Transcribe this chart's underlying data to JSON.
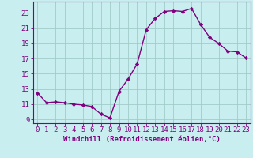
{
  "x": [
    0,
    1,
    2,
    3,
    4,
    5,
    6,
    7,
    8,
    9,
    10,
    11,
    12,
    13,
    14,
    15,
    16,
    17,
    18,
    19,
    20,
    21,
    22,
    23
  ],
  "y": [
    12.5,
    11.2,
    11.3,
    11.2,
    11.0,
    10.9,
    10.7,
    9.7,
    9.2,
    12.7,
    14.3,
    16.3,
    20.8,
    22.3,
    23.2,
    23.3,
    23.2,
    23.6,
    21.5,
    19.8,
    19.0,
    18.0,
    17.9,
    17.1
  ],
  "line_color": "#800080",
  "marker": "D",
  "marker_size": 2.2,
  "linewidth": 1.0,
  "bg_color": "#c8eef0",
  "grid_color": "#a0ccc8",
  "xlabel": "Windchill (Refroidissement éolien,°C)",
  "xlabel_fontsize": 6.5,
  "xtick_labels": [
    "0",
    "1",
    "2",
    "3",
    "4",
    "5",
    "6",
    "7",
    "8",
    "9",
    "10",
    "11",
    "12",
    "13",
    "14",
    "15",
    "16",
    "17",
    "18",
    "19",
    "20",
    "21",
    "22",
    "23"
  ],
  "ytick_values": [
    9,
    11,
    13,
    15,
    17,
    19,
    21,
    23
  ],
  "ylim": [
    8.5,
    24.5
  ],
  "xlim": [
    -0.5,
    23.5
  ],
  "tick_color": "#800080",
  "tick_fontsize": 6.5,
  "spine_color": "#800080"
}
